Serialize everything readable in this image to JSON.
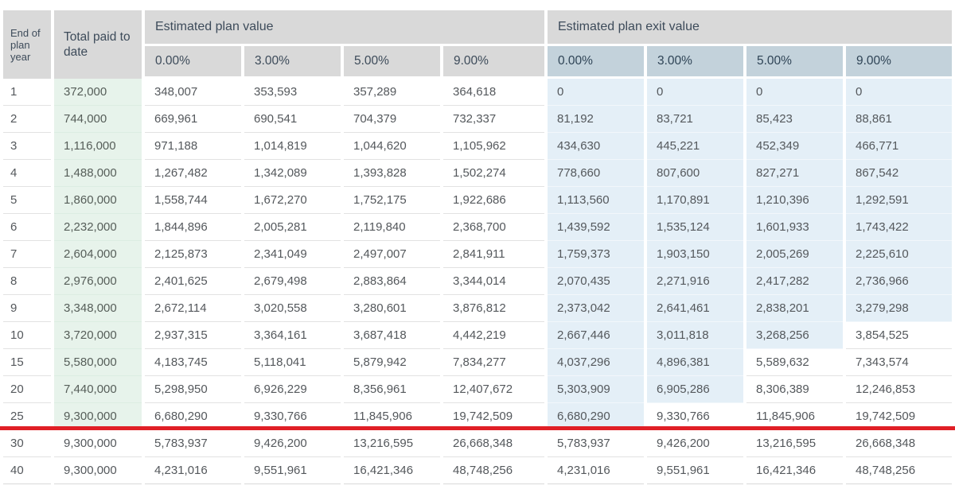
{
  "table": {
    "year_header": "End of plan year",
    "paid_header": "Total paid to date",
    "group_plan_value": "Estimated plan value",
    "group_exit_value": "Estimated plan exit value",
    "rates": [
      "0.00%",
      "3.00%",
      "5.00%",
      "9.00%"
    ],
    "rows": [
      {
        "year": "1",
        "paid": "372,000",
        "paid_green": true,
        "pv": [
          "348,007",
          "353,593",
          "357,289",
          "364,618"
        ],
        "ev": [
          "0",
          "0",
          "0",
          "0"
        ],
        "ev_blue": 4
      },
      {
        "year": "2",
        "paid": "744,000",
        "paid_green": true,
        "pv": [
          "669,961",
          "690,541",
          "704,379",
          "732,337"
        ],
        "ev": [
          "81,192",
          "83,721",
          "85,423",
          "88,861"
        ],
        "ev_blue": 4
      },
      {
        "year": "3",
        "paid": "1,116,000",
        "paid_green": true,
        "pv": [
          "971,188",
          "1,014,819",
          "1,044,620",
          "1,105,962"
        ],
        "ev": [
          "434,630",
          "445,221",
          "452,349",
          "466,771"
        ],
        "ev_blue": 4
      },
      {
        "year": "4",
        "paid": "1,488,000",
        "paid_green": true,
        "pv": [
          "1,267,482",
          "1,342,089",
          "1,393,828",
          "1,502,274"
        ],
        "ev": [
          "778,660",
          "807,600",
          "827,271",
          "867,542"
        ],
        "ev_blue": 4
      },
      {
        "year": "5",
        "paid": "1,860,000",
        "paid_green": true,
        "pv": [
          "1,558,744",
          "1,672,270",
          "1,752,175",
          "1,922,686"
        ],
        "ev": [
          "1,113,560",
          "1,170,891",
          "1,210,396",
          "1,292,591"
        ],
        "ev_blue": 4
      },
      {
        "year": "6",
        "paid": "2,232,000",
        "paid_green": true,
        "pv": [
          "1,844,896",
          "2,005,281",
          "2,119,840",
          "2,368,700"
        ],
        "ev": [
          "1,439,592",
          "1,535,124",
          "1,601,933",
          "1,743,422"
        ],
        "ev_blue": 4
      },
      {
        "year": "7",
        "paid": "2,604,000",
        "paid_green": true,
        "pv": [
          "2,125,873",
          "2,341,049",
          "2,497,007",
          "2,841,911"
        ],
        "ev": [
          "1,759,373",
          "1,903,150",
          "2,005,269",
          "2,225,610"
        ],
        "ev_blue": 4
      },
      {
        "year": "8",
        "paid": "2,976,000",
        "paid_green": true,
        "pv": [
          "2,401,625",
          "2,679,498",
          "2,883,864",
          "3,344,014"
        ],
        "ev": [
          "2,070,435",
          "2,271,916",
          "2,417,282",
          "2,736,966"
        ],
        "ev_blue": 4
      },
      {
        "year": "9",
        "paid": "3,348,000",
        "paid_green": true,
        "pv": [
          "2,672,114",
          "3,020,558",
          "3,280,601",
          "3,876,812"
        ],
        "ev": [
          "2,373,042",
          "2,641,461",
          "2,838,201",
          "3,279,298"
        ],
        "ev_blue": 4
      },
      {
        "year": "10",
        "paid": "3,720,000",
        "paid_green": true,
        "pv": [
          "2,937,315",
          "3,364,161",
          "3,687,418",
          "4,442,219"
        ],
        "ev": [
          "2,667,446",
          "3,011,818",
          "3,268,256",
          "3,854,525"
        ],
        "ev_blue": 3
      },
      {
        "year": "15",
        "paid": "5,580,000",
        "paid_green": true,
        "pv": [
          "4,183,745",
          "5,118,041",
          "5,879,942",
          "7,834,277"
        ],
        "ev": [
          "4,037,296",
          "4,896,381",
          "5,589,632",
          "7,343,574"
        ],
        "ev_blue": 2
      },
      {
        "year": "20",
        "paid": "7,440,000",
        "paid_green": true,
        "pv": [
          "5,298,950",
          "6,926,229",
          "8,356,961",
          "12,407,672"
        ],
        "ev": [
          "5,303,909",
          "6,905,286",
          "8,306,389",
          "12,246,853"
        ],
        "ev_blue": 2
      },
      {
        "year": "25",
        "paid": "9,300,000",
        "paid_green": true,
        "pv": [
          "6,680,290",
          "9,330,766",
          "11,845,906",
          "19,742,509"
        ],
        "ev": [
          "6,680,290",
          "9,330,766",
          "11,845,906",
          "19,742,509"
        ],
        "ev_blue": 1
      },
      {
        "year": "30",
        "paid": "9,300,000",
        "paid_green": false,
        "pv": [
          "5,783,937",
          "9,426,200",
          "13,216,595",
          "26,668,348"
        ],
        "ev": [
          "5,783,937",
          "9,426,200",
          "13,216,595",
          "26,668,348"
        ],
        "ev_blue": 0
      },
      {
        "year": "40",
        "paid": "9,300,000",
        "paid_green": false,
        "pv": [
          "4,231,016",
          "9,551,961",
          "16,421,346",
          "48,748,256"
        ],
        "ev": [
          "4,231,016",
          "9,551,961",
          "16,421,346",
          "48,748,256"
        ],
        "ev_blue": 0
      }
    ]
  },
  "colors": {
    "header_bg": "#d9d9d9",
    "exit_subheader_bg": "#c3d2db",
    "exit_cell_bg": "#e4eff7",
    "paid_cell_bg": "#e7f3eb",
    "grid_line": "#e2e2e2",
    "divider_red": "#e01f26",
    "header_text": "#3d4b5a",
    "data_text": "#54585c"
  },
  "chart_data": {
    "type": "table",
    "title": "Estimated plan value and estimated plan exit value by end of plan year",
    "columns": [
      "End of plan year",
      "Total paid to date",
      "Plan value 0.00%",
      "Plan value 3.00%",
      "Plan value 5.00%",
      "Plan value 9.00%",
      "Exit value 0.00%",
      "Exit value 3.00%",
      "Exit value 5.00%",
      "Exit value 9.00%"
    ],
    "rows": [
      [
        1,
        372000,
        348007,
        353593,
        357289,
        364618,
        0,
        0,
        0,
        0
      ],
      [
        2,
        744000,
        669961,
        690541,
        704379,
        732337,
        81192,
        83721,
        85423,
        88861
      ],
      [
        3,
        1116000,
        971188,
        1014819,
        1044620,
        1105962,
        434630,
        445221,
        452349,
        466771
      ],
      [
        4,
        1488000,
        1267482,
        1342089,
        1393828,
        1502274,
        778660,
        807600,
        827271,
        867542
      ],
      [
        5,
        1860000,
        1558744,
        1672270,
        1752175,
        1922686,
        1113560,
        1170891,
        1210396,
        1292591
      ],
      [
        6,
        2232000,
        1844896,
        2005281,
        2119840,
        2368700,
        1439592,
        1535124,
        1601933,
        1743422
      ],
      [
        7,
        2604000,
        2125873,
        2341049,
        2497007,
        2841911,
        1759373,
        1903150,
        2005269,
        2225610
      ],
      [
        8,
        2976000,
        2401625,
        2679498,
        2883864,
        3344014,
        2070435,
        2271916,
        2417282,
        2736966
      ],
      [
        9,
        3348000,
        2672114,
        3020558,
        3280601,
        3876812,
        2373042,
        2641461,
        2838201,
        3279298
      ],
      [
        10,
        3720000,
        2937315,
        3364161,
        3687418,
        4442219,
        2667446,
        3011818,
        3268256,
        3854525
      ],
      [
        15,
        5580000,
        4183745,
        5118041,
        5879942,
        7834277,
        4037296,
        4896381,
        5589632,
        7343574
      ],
      [
        20,
        7440000,
        5298950,
        6926229,
        8356961,
        12407672,
        5303909,
        6905286,
        8306389,
        12246853
      ],
      [
        25,
        9300000,
        6680290,
        9330766,
        11845906,
        19742509,
        6680290,
        9330766,
        11845906,
        19742509
      ],
      [
        30,
        9300000,
        5783937,
        9426200,
        13216595,
        26668348,
        5783937,
        9426200,
        13216595,
        26668348
      ],
      [
        40,
        9300000,
        4231016,
        9551961,
        16421346,
        48748256,
        4231016,
        9551961,
        16421346,
        48748256
      ]
    ],
    "annotations": [
      "red horizontal divider line after year 25 row"
    ]
  }
}
